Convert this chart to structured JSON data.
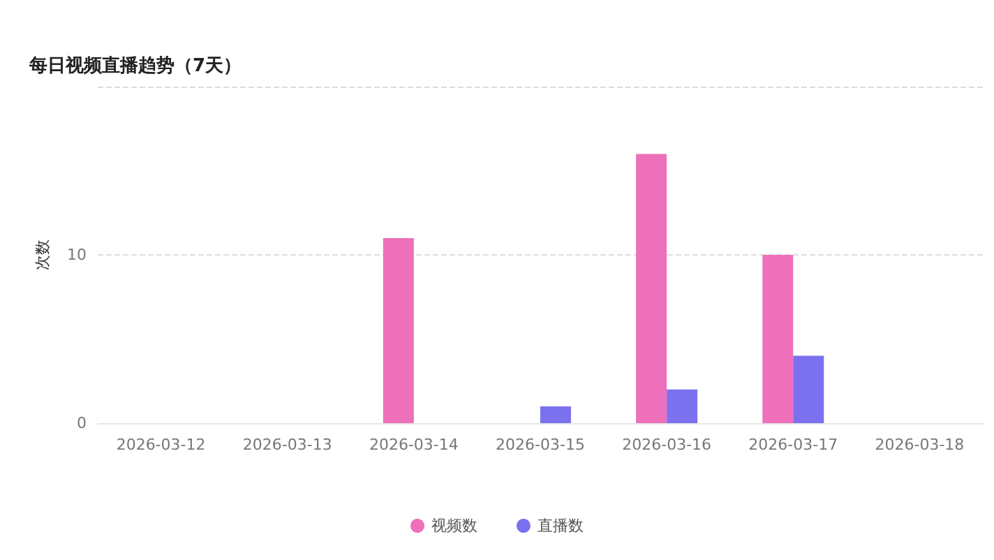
{
  "chart_data": {
    "type": "bar",
    "title": "每日视频直播趋势（7天）",
    "ylabel": "次数",
    "categories": [
      "2026-03-12",
      "2026-03-13",
      "2026-03-14",
      "2026-03-15",
      "2026-03-16",
      "2026-03-17",
      "2026-03-18"
    ],
    "series": [
      {
        "name": "视频数",
        "color": "#ee6fba",
        "values": [
          0,
          0,
          11,
          0,
          16,
          10,
          0
        ]
      },
      {
        "name": "直播数",
        "color": "#7b71ef",
        "values": [
          0,
          0,
          0,
          1,
          2,
          4,
          0
        ]
      }
    ],
    "ylim": [
      0,
      20
    ],
    "yticks": [
      0,
      10,
      {
        "value": 20,
        "label": null
      }
    ],
    "grid": "y",
    "legend": "bottom"
  }
}
